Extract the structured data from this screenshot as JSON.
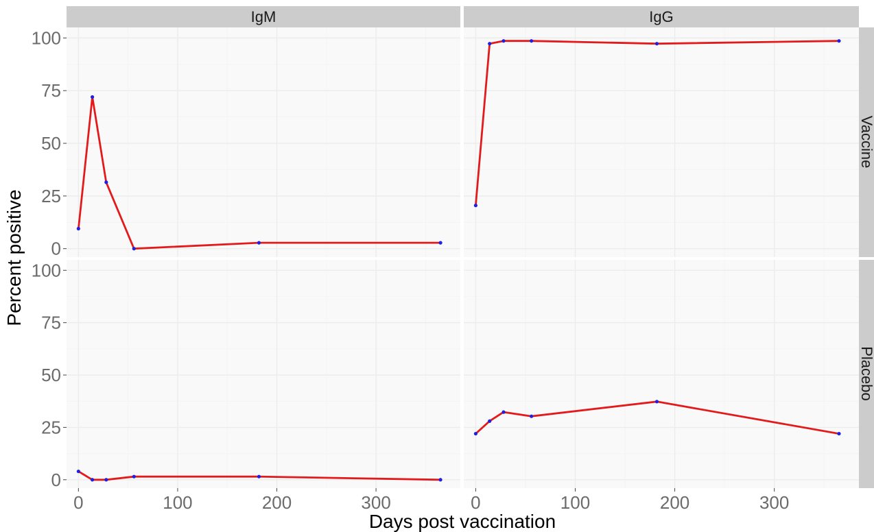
{
  "chart_data": {
    "type": "line",
    "xlabel": "Days post vaccination",
    "ylabel": "Percent positive",
    "xlim": [
      -12,
      385
    ],
    "ylim": [
      -4,
      105
    ],
    "x_ticks": [
      0,
      100,
      200,
      300
    ],
    "x_minor_ticks": [
      50,
      150,
      250,
      350
    ],
    "y_ticks": [
      0,
      25,
      50,
      75,
      100
    ],
    "y_minor_ticks": [
      12.5,
      37.5,
      62.5,
      87.5
    ],
    "grid": true,
    "columns": [
      "IgM",
      "IgG"
    ],
    "rows": [
      "Vaccine",
      "Placebo"
    ],
    "line_color": "#e31a1c",
    "point_color": "#2020e0",
    "panels": [
      {
        "col": "IgM",
        "row": "Vaccine",
        "x": [
          0,
          14,
          28,
          56,
          182,
          365
        ],
        "y": [
          9.5,
          72,
          31.5,
          0,
          2.8,
          2.8
        ]
      },
      {
        "col": "IgG",
        "row": "Vaccine",
        "x": [
          0,
          14,
          28,
          56,
          182,
          365
        ],
        "y": [
          20.5,
          97.3,
          98.6,
          98.6,
          97.3,
          98.6
        ]
      },
      {
        "col": "IgM",
        "row": "Placebo",
        "x": [
          0,
          14,
          28,
          56,
          182,
          365
        ],
        "y": [
          4,
          0,
          0,
          1.5,
          1.5,
          0
        ]
      },
      {
        "col": "IgG",
        "row": "Placebo",
        "x": [
          0,
          14,
          28,
          56,
          182,
          365
        ],
        "y": [
          22,
          28,
          32.3,
          30.3,
          37.3,
          22
        ]
      }
    ]
  }
}
